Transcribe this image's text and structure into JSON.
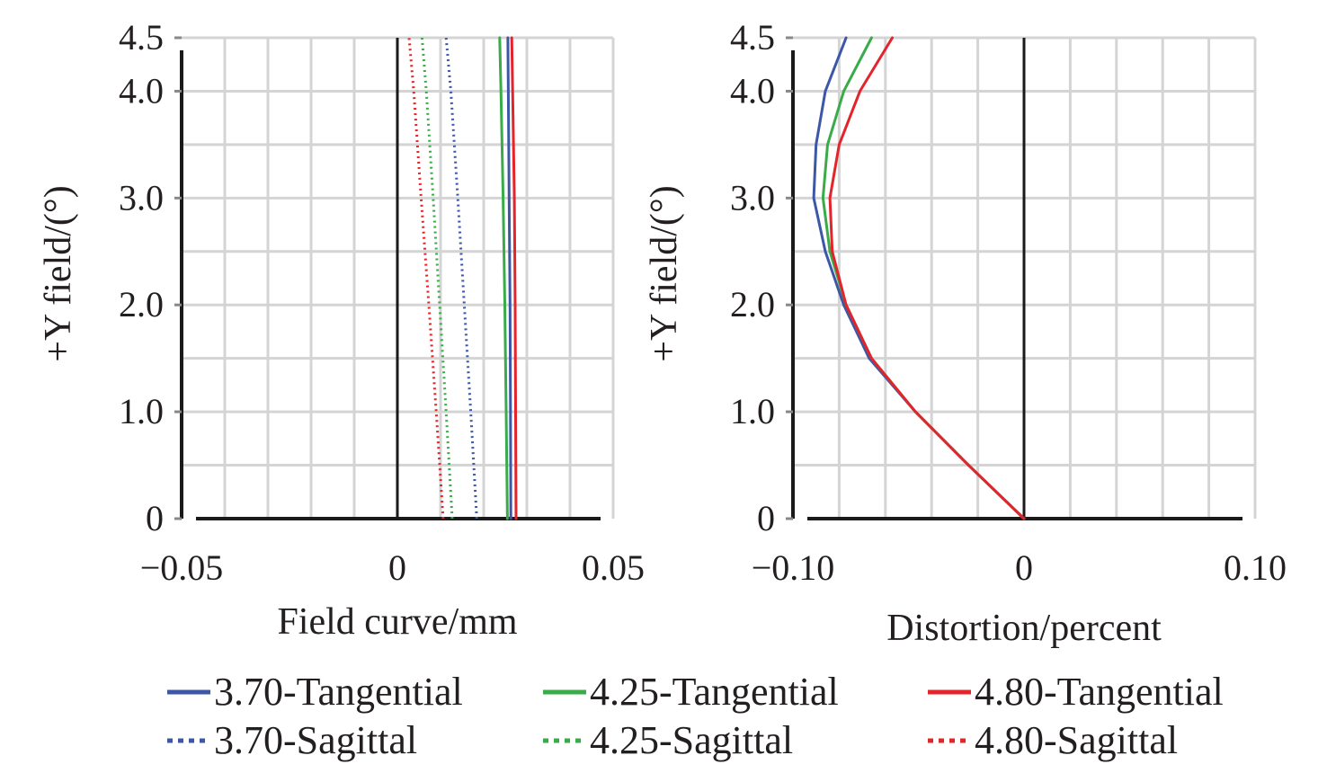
{
  "chart_data": [
    {
      "type": "line",
      "xlabel": "Field curve/mm",
      "ylabel": "+Y field/(°)",
      "xlim": [
        -0.05,
        0.05
      ],
      "ylim": [
        0,
        4.5
      ],
      "x_ticks": [
        "−0.05",
        "0",
        "0.05"
      ],
      "y_ticks": [
        "0",
        "1.0",
        "2.0",
        "3.0",
        "4.0",
        "4.5"
      ],
      "grid": true,
      "series": [
        {
          "name": "3.70-Tangential",
          "color": "#3b57a6",
          "dash": "solid",
          "points": [
            [
              0.0263,
              0
            ],
            [
              0.0262,
              1.0
            ],
            [
              0.0261,
              2.0
            ],
            [
              0.0259,
              3.0
            ],
            [
              0.0257,
              4.0
            ],
            [
              0.0256,
              4.5
            ]
          ]
        },
        {
          "name": "4.25-Tangential",
          "color": "#3aab49",
          "dash": "solid",
          "points": [
            [
              0.0255,
              0
            ],
            [
              0.0252,
              1.0
            ],
            [
              0.0249,
              2.0
            ],
            [
              0.0245,
              3.0
            ],
            [
              0.024,
              4.0
            ],
            [
              0.0237,
              4.5
            ]
          ]
        },
        {
          "name": "4.80-Tangential",
          "color": "#e3242b",
          "dash": "solid",
          "points": [
            [
              0.0275,
              0
            ],
            [
              0.0274,
              1.0
            ],
            [
              0.0273,
              2.0
            ],
            [
              0.0271,
              3.0
            ],
            [
              0.0267,
              4.0
            ],
            [
              0.0265,
              4.5
            ]
          ]
        },
        {
          "name": "3.70-Sagittal",
          "color": "#3b57a6",
          "dash": "dotted",
          "points": [
            [
              0.0184,
              0
            ],
            [
              0.017,
              1.0
            ],
            [
              0.0155,
              2.0
            ],
            [
              0.014,
              3.0
            ],
            [
              0.0124,
              4.0
            ],
            [
              0.0113,
              4.5
            ]
          ]
        },
        {
          "name": "4.25-Sagittal",
          "color": "#3aab49",
          "dash": "dotted",
          "points": [
            [
              0.0127,
              0
            ],
            [
              0.0113,
              1.0
            ],
            [
              0.0098,
              2.0
            ],
            [
              0.0083,
              3.0
            ],
            [
              0.0067,
              4.0
            ],
            [
              0.0057,
              4.5
            ]
          ]
        },
        {
          "name": "4.80-Sagittal",
          "color": "#e3242b",
          "dash": "dotted",
          "points": [
            [
              0.0106,
              0
            ],
            [
              0.009,
              1.0
            ],
            [
              0.0073,
              2.0
            ],
            [
              0.0055,
              3.0
            ],
            [
              0.0038,
              4.0
            ],
            [
              0.0027,
              4.5
            ]
          ]
        }
      ]
    },
    {
      "type": "line",
      "xlabel": "Distortion/percent",
      "ylabel": "+Y field/(°)",
      "xlim": [
        -0.1,
        0.1
      ],
      "ylim": [
        0,
        4.5
      ],
      "x_ticks": [
        "−0.10",
        "0",
        "0.10"
      ],
      "y_ticks": [
        "0",
        "1.0",
        "2.0",
        "3.0",
        "4.0",
        "4.5"
      ],
      "grid": true,
      "series": [
        {
          "name": "3.70-Tangential",
          "color": "#3b57a6",
          "dash": "solid",
          "points": [
            [
              0,
              0
            ],
            [
              -0.024,
              0.5
            ],
            [
              -0.047,
              1.0
            ],
            [
              -0.067,
              1.5
            ],
            [
              -0.078,
              2.0
            ],
            [
              -0.086,
              2.5
            ],
            [
              -0.091,
              3.0
            ],
            [
              -0.09,
              3.5
            ],
            [
              -0.086,
              4.0
            ],
            [
              -0.077,
              4.5
            ]
          ]
        },
        {
          "name": "4.25-Tangential",
          "color": "#3aab49",
          "dash": "solid",
          "points": [
            [
              0,
              0
            ],
            [
              -0.024,
              0.5
            ],
            [
              -0.047,
              1.0
            ],
            [
              -0.066,
              1.5
            ],
            [
              -0.077,
              2.0
            ],
            [
              -0.084,
              2.5
            ],
            [
              -0.087,
              3.0
            ],
            [
              -0.085,
              3.5
            ],
            [
              -0.078,
              4.0
            ],
            [
              -0.066,
              4.5
            ]
          ]
        },
        {
          "name": "4.80-Tangential",
          "color": "#e3242b",
          "dash": "solid",
          "points": [
            [
              0,
              0
            ],
            [
              -0.024,
              0.5
            ],
            [
              -0.047,
              1.0
            ],
            [
              -0.066,
              1.5
            ],
            [
              -0.077,
              2.0
            ],
            [
              -0.083,
              2.5
            ],
            [
              -0.084,
              3.0
            ],
            [
              -0.08,
              3.5
            ],
            [
              -0.071,
              4.0
            ],
            [
              -0.057,
              4.5
            ]
          ]
        }
      ]
    }
  ],
  "legend": {
    "placement": "bottom",
    "items": [
      {
        "label": "3.70-Tangential",
        "color": "#3b57a6",
        "dash": "solid"
      },
      {
        "label": "4.25-Tangential",
        "color": "#3aab49",
        "dash": "solid"
      },
      {
        "label": "4.80-Tangential",
        "color": "#e3242b",
        "dash": "solid"
      },
      {
        "label": "3.70-Sagittal",
        "color": "#3b57a6",
        "dash": "dotted"
      },
      {
        "label": "4.25-Sagittal",
        "color": "#3aab49",
        "dash": "dotted"
      },
      {
        "label": "4.80-Sagittal",
        "color": "#e3242b",
        "dash": "dotted"
      }
    ]
  }
}
